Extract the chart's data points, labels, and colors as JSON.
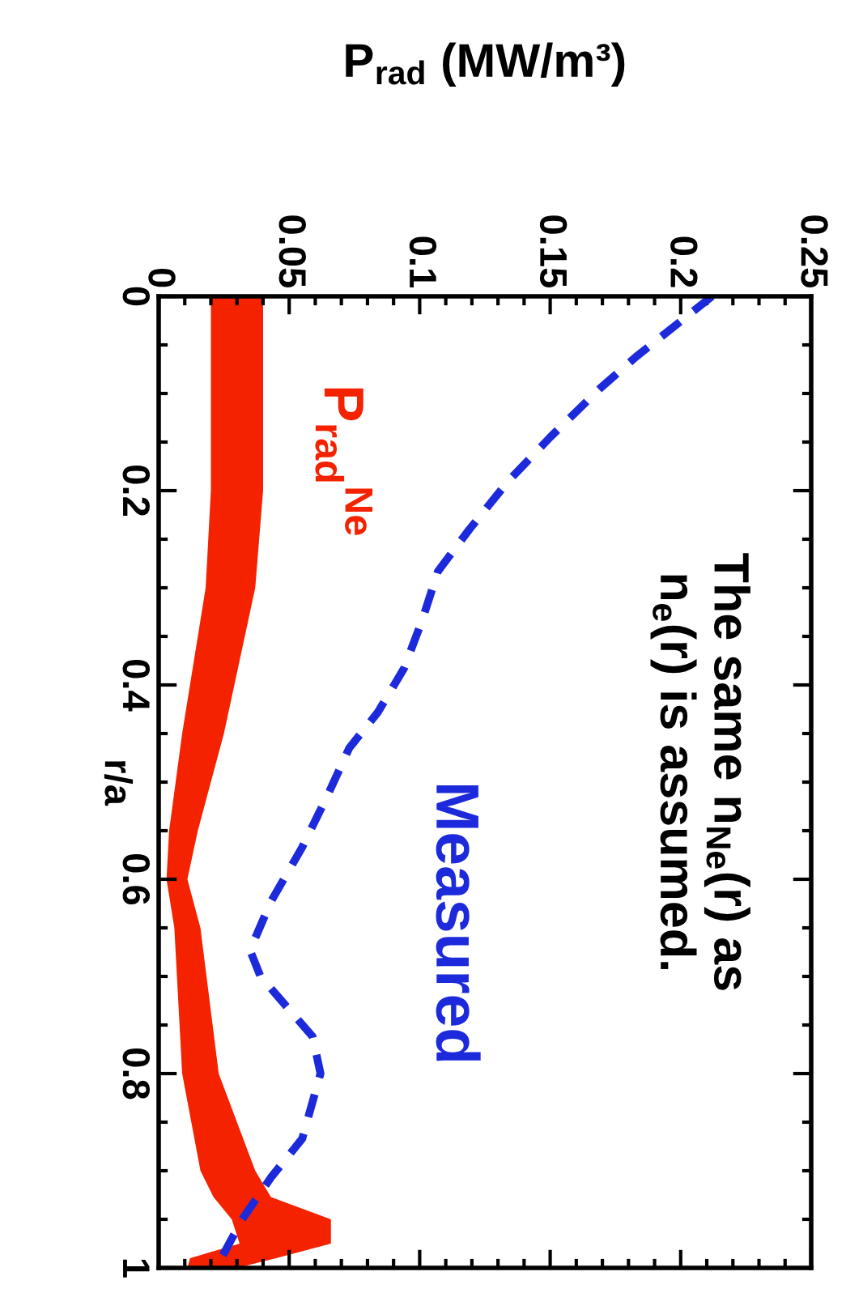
{
  "chart_data": {
    "type": "line",
    "orientation": "horizontal",
    "xlabel": "P$_{rad}$ (MW/m³)",
    "ylabel": "r/a",
    "xlim": [
      0,
      0.25
    ],
    "xticks": [
      0,
      0.05,
      0.1,
      0.15,
      0.2,
      0.25
    ],
    "ylim": [
      1,
      0
    ],
    "yticks": [
      0,
      0.2,
      0.4,
      0.6,
      0.8,
      1
    ],
    "annotations": [
      "The same n$_{Ne}$(r) as\nn$_{e}$(r) is assumed."
    ],
    "series": [
      {
        "name": "P$_{rad}$$^{Ne}$",
        "type": "area",
        "color": "#f52200",
        "x": [
          0,
          0.2,
          0.3,
          0.45,
          0.55,
          0.6,
          0.65,
          0.8,
          0.9,
          0.927,
          0.95,
          0.975,
          0.99,
          1
        ],
        "values": [
          null,
          null,
          null,
          null,
          null,
          null,
          null,
          null,
          null,
          null,
          null,
          null,
          null,
          null
        ],
        "lower": [
          0.02,
          0.02,
          0.018,
          0.009,
          0.004,
          0.003,
          0.006,
          0.009,
          0.016,
          0.021,
          0.028,
          0.031,
          0.012,
          0.011
        ],
        "upper": [
          0.04,
          0.04,
          0.037,
          0.025,
          0.015,
          0.011,
          0.016,
          0.023,
          0.037,
          0.043,
          0.066,
          0.066,
          0.045,
          0.03
        ]
      },
      {
        "name": "Measured",
        "color": "#1c2adb",
        "line_style": "dashed",
        "x": [
          0,
          0.062,
          0.095,
          0.145,
          0.19,
          0.24,
          0.283,
          0.333,
          0.383,
          0.428,
          0.465,
          0.512,
          0.567,
          0.623,
          0.673,
          0.7,
          0.762,
          0.8,
          0.867,
          0.907,
          0.95,
          1
        ],
        "values": [
          0.212,
          0.183,
          0.169,
          0.15,
          0.134,
          0.119,
          0.107,
          0.101,
          0.094,
          0.084,
          0.073,
          0.065,
          0.055,
          0.043,
          0.035,
          0.039,
          0.059,
          0.062,
          0.055,
          0.043,
          0.032,
          0.022
        ]
      }
    ]
  }
}
